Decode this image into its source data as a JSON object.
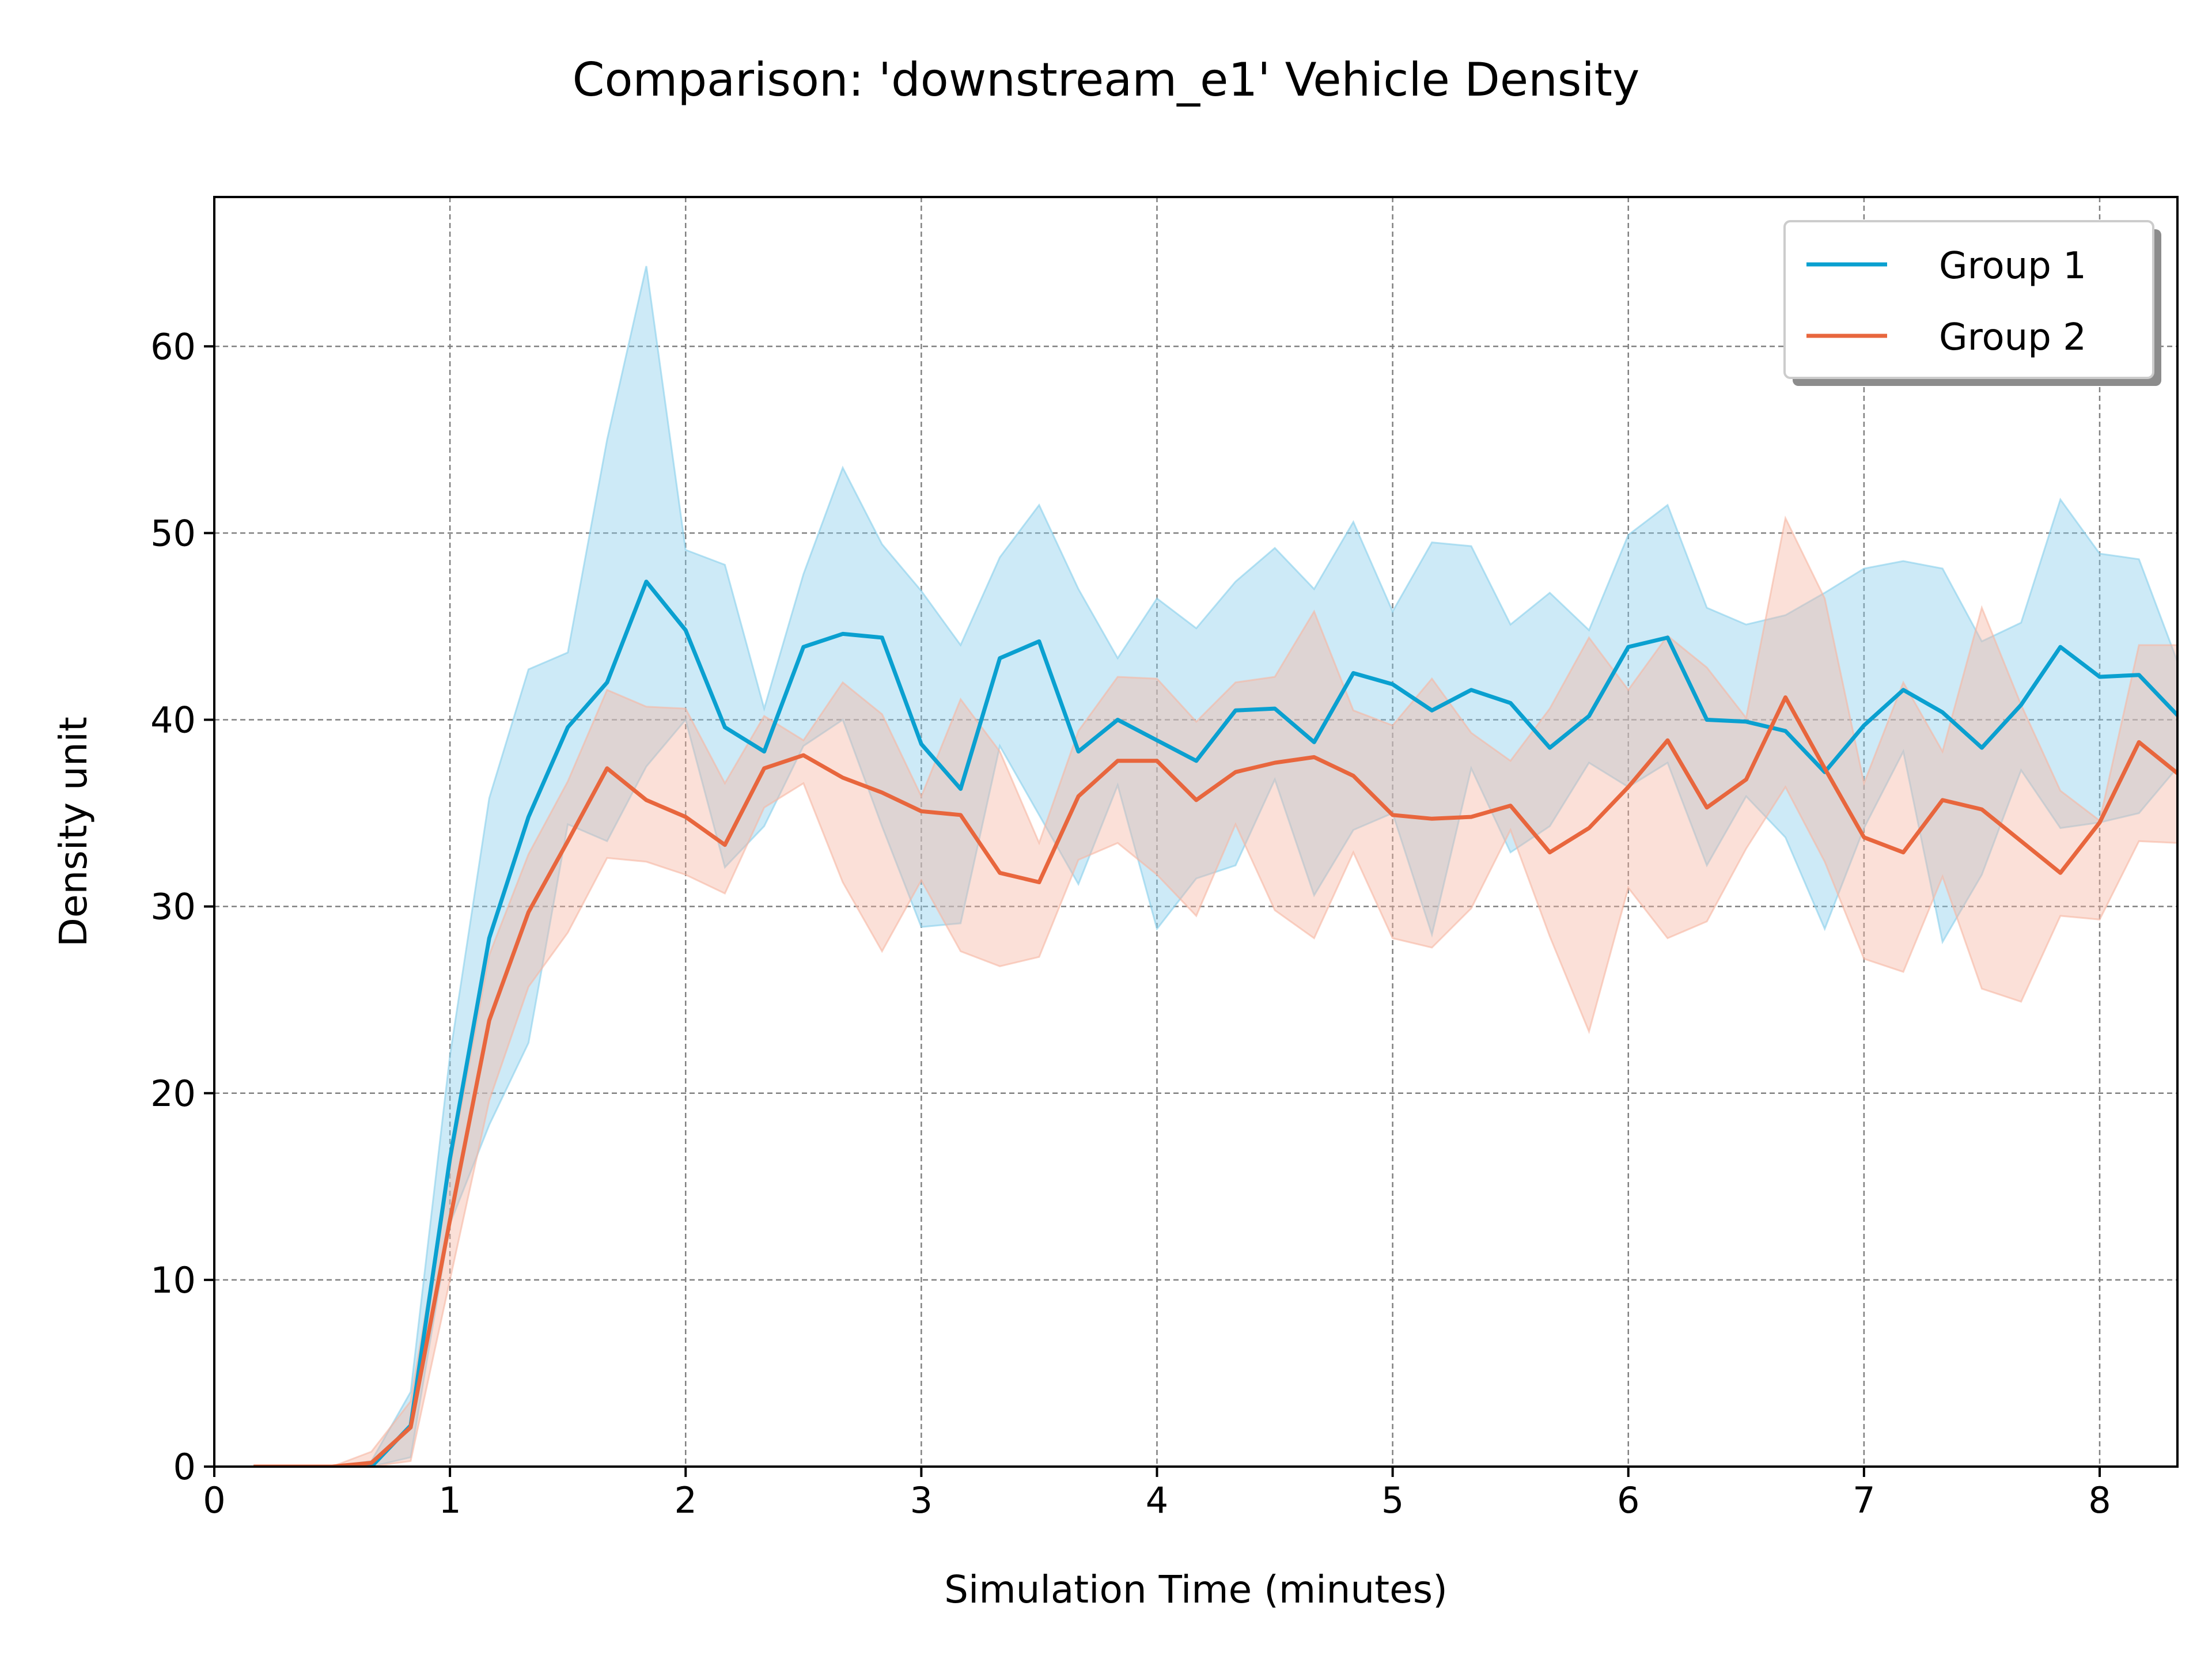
{
  "chart_data": {
    "type": "line",
    "title": "Comparison: 'downstream_e1' Vehicle Density",
    "xlabel": "Simulation Time (minutes)",
    "ylabel": "Density unit",
    "xlim": [
      0,
      8.33
    ],
    "ylim": [
      0,
      68
    ],
    "xticks": [
      "0",
      "1",
      "2",
      "3",
      "4",
      "5",
      "6",
      "7",
      "8"
    ],
    "yticks": [
      "0",
      "10",
      "20",
      "30",
      "40",
      "50",
      "60"
    ],
    "grid": true,
    "legend_position": "top-right",
    "x": [
      0.1667,
      0.3333,
      0.5,
      0.6667,
      0.8333,
      1,
      1.1667,
      1.3333,
      1.5,
      1.6667,
      1.8333,
      2,
      2.1667,
      2.3333,
      2.5,
      2.6667,
      2.8333,
      3,
      3.1667,
      3.3333,
      3.5,
      3.6667,
      3.8333,
      4,
      4.1667,
      4.3333,
      4.5,
      4.6667,
      4.8333,
      5,
      5.1667,
      5.3333,
      5.5,
      5.6667,
      5.8333,
      6,
      6.1667,
      6.3333,
      6.5,
      6.6667,
      6.8333,
      7,
      7.1667,
      7.3333,
      7.5,
      7.6667,
      7.8333,
      8,
      8.1667,
      8.3333
    ],
    "series": [
      {
        "name": "Group 1",
        "color": "#0aa0d0",
        "band_color": "#87ceeb",
        "values": [
          0,
          0,
          0,
          0,
          2.2,
          16.5,
          28.3,
          34.8,
          39.6,
          42,
          47.4,
          44.8,
          39.6,
          38.3,
          43.9,
          44.6,
          44.4,
          38.7,
          36.3,
          43.3,
          44.2,
          38.3,
          40,
          38.9,
          37.8,
          40.5,
          40.6,
          38.8,
          42.5,
          41.9,
          40.5,
          41.6,
          40.9,
          38.5,
          40.2,
          43.9,
          44.4,
          40,
          39.9,
          39.4,
          37.2,
          39.7,
          41.6,
          40.4,
          38.5,
          40.8,
          43.9,
          42.3,
          42.4,
          40.2
        ],
        "upper": [
          0,
          0,
          0,
          0.3,
          4,
          22,
          35.8,
          42.7,
          43.6,
          55,
          64.3,
          49.1,
          48.3,
          40.6,
          47.8,
          53.5,
          49.4,
          46.9,
          44,
          48.7,
          51.5,
          47,
          43.3,
          46.5,
          44.9,
          47.4,
          49.2,
          47,
          50.6,
          45.8,
          49.5,
          49.3,
          45.1,
          46.8,
          44.8,
          49.9,
          51.5,
          46,
          45.1,
          45.6,
          46.8,
          48.1,
          48.5,
          48.1,
          44.2,
          45.2,
          51.8,
          48.9,
          48.6,
          43
        ],
        "lower": [
          0,
          0,
          0,
          0,
          0.5,
          13,
          18.3,
          22.7,
          34.4,
          33.5,
          37.5,
          40,
          32.1,
          34.3,
          38.6,
          40,
          34.3,
          28.9,
          29.1,
          38.6,
          34.9,
          31.2,
          36.5,
          28.8,
          31.5,
          32.2,
          36.8,
          30.6,
          34.1,
          35,
          28.5,
          37.4,
          32.9,
          34.3,
          37.7,
          36.4,
          37.7,
          32.2,
          35.9,
          33.7,
          28.8,
          34.2,
          38.3,
          28.1,
          31.7,
          37.3,
          34.2,
          34.5,
          35,
          37.5
        ]
      },
      {
        "name": "Group 2",
        "color": "#e8663d",
        "band_color": "#f6b5a2",
        "values": [
          0,
          0,
          0,
          0.2,
          2.1,
          13.2,
          23.9,
          29.7,
          33.5,
          37.4,
          35.7,
          34.8,
          33.3,
          37.4,
          38.1,
          36.9,
          36.1,
          35.1,
          34.9,
          31.8,
          31.3,
          35.9,
          37.8,
          37.8,
          35.7,
          37.2,
          37.7,
          38,
          37,
          34.9,
          34.7,
          34.8,
          35.4,
          32.9,
          34.2,
          36.4,
          38.9,
          35.3,
          36.8,
          41.2,
          37.4,
          33.7,
          32.9,
          35.7,
          35.2,
          33.5,
          31.8,
          34.5,
          38.8,
          37.1
        ],
        "upper": [
          0,
          0,
          0,
          0.8,
          3.5,
          16,
          27.4,
          32.8,
          36.7,
          41.6,
          40.7,
          40.6,
          36.6,
          40.2,
          38.9,
          42,
          40.3,
          35.9,
          41.1,
          38.3,
          33.4,
          39.4,
          42.3,
          42.2,
          39.9,
          42,
          42.3,
          45.8,
          40.5,
          39.7,
          42.2,
          39.3,
          37.8,
          40.6,
          44.4,
          41.6,
          44.5,
          42.8,
          40.1,
          50.8,
          46.5,
          36.6,
          42,
          38.3,
          46,
          40.8,
          36.2,
          34.6,
          44,
          44
        ],
        "lower": [
          0,
          0,
          0,
          0,
          0.3,
          10,
          19.6,
          25.7,
          28.6,
          32.6,
          32.4,
          31.7,
          30.7,
          35.3,
          36.6,
          31.3,
          27.6,
          31.4,
          27.6,
          26.8,
          27.3,
          32.5,
          33.4,
          31.7,
          29.5,
          34.4,
          29.8,
          28.3,
          32.9,
          28.3,
          27.8,
          29.9,
          34.1,
          28.4,
          23.3,
          31,
          28.3,
          29.2,
          33.1,
          36.4,
          32.4,
          27.2,
          26.5,
          31.6,
          25.6,
          24.9,
          29.5,
          29.3,
          33.5,
          33.4
        ]
      }
    ]
  }
}
